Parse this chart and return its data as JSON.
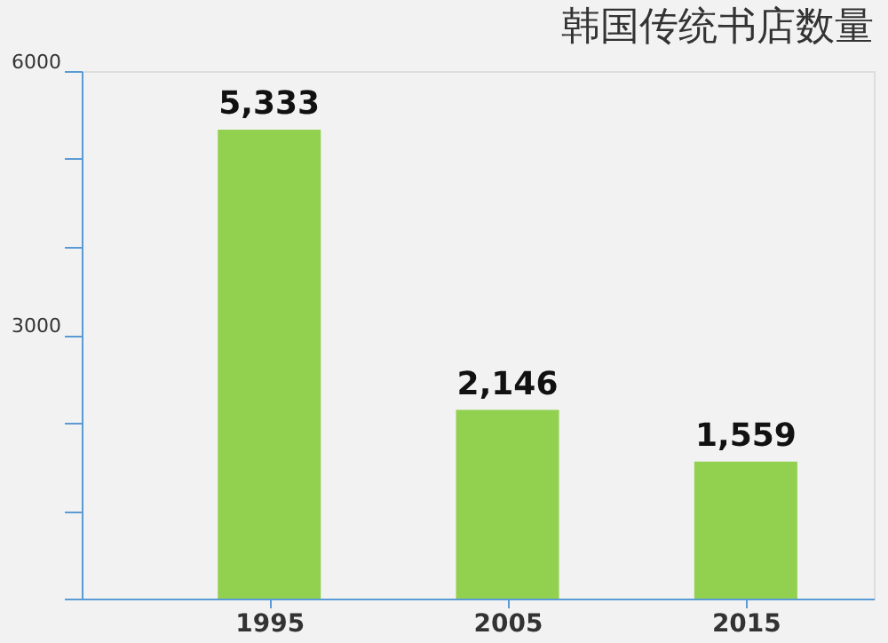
{
  "chart_data": {
    "type": "bar",
    "title": "韩国传统书店数量",
    "categories": [
      "1995",
      "2005",
      "2015"
    ],
    "values": [
      5333,
      2146,
      1559
    ],
    "value_labels": [
      "5,333",
      "2,146",
      "1,559"
    ],
    "color": "#92d050",
    "ylim": [
      0,
      6000
    ],
    "yticks": [
      {
        "value": 0,
        "label": null
      },
      {
        "value": 1000,
        "label": null
      },
      {
        "value": 2000,
        "label": null
      },
      3000,
      {
        "value": 4000,
        "label": null
      },
      {
        "value": 5000,
        "label": null
      },
      6000
    ],
    "grid": false
  }
}
